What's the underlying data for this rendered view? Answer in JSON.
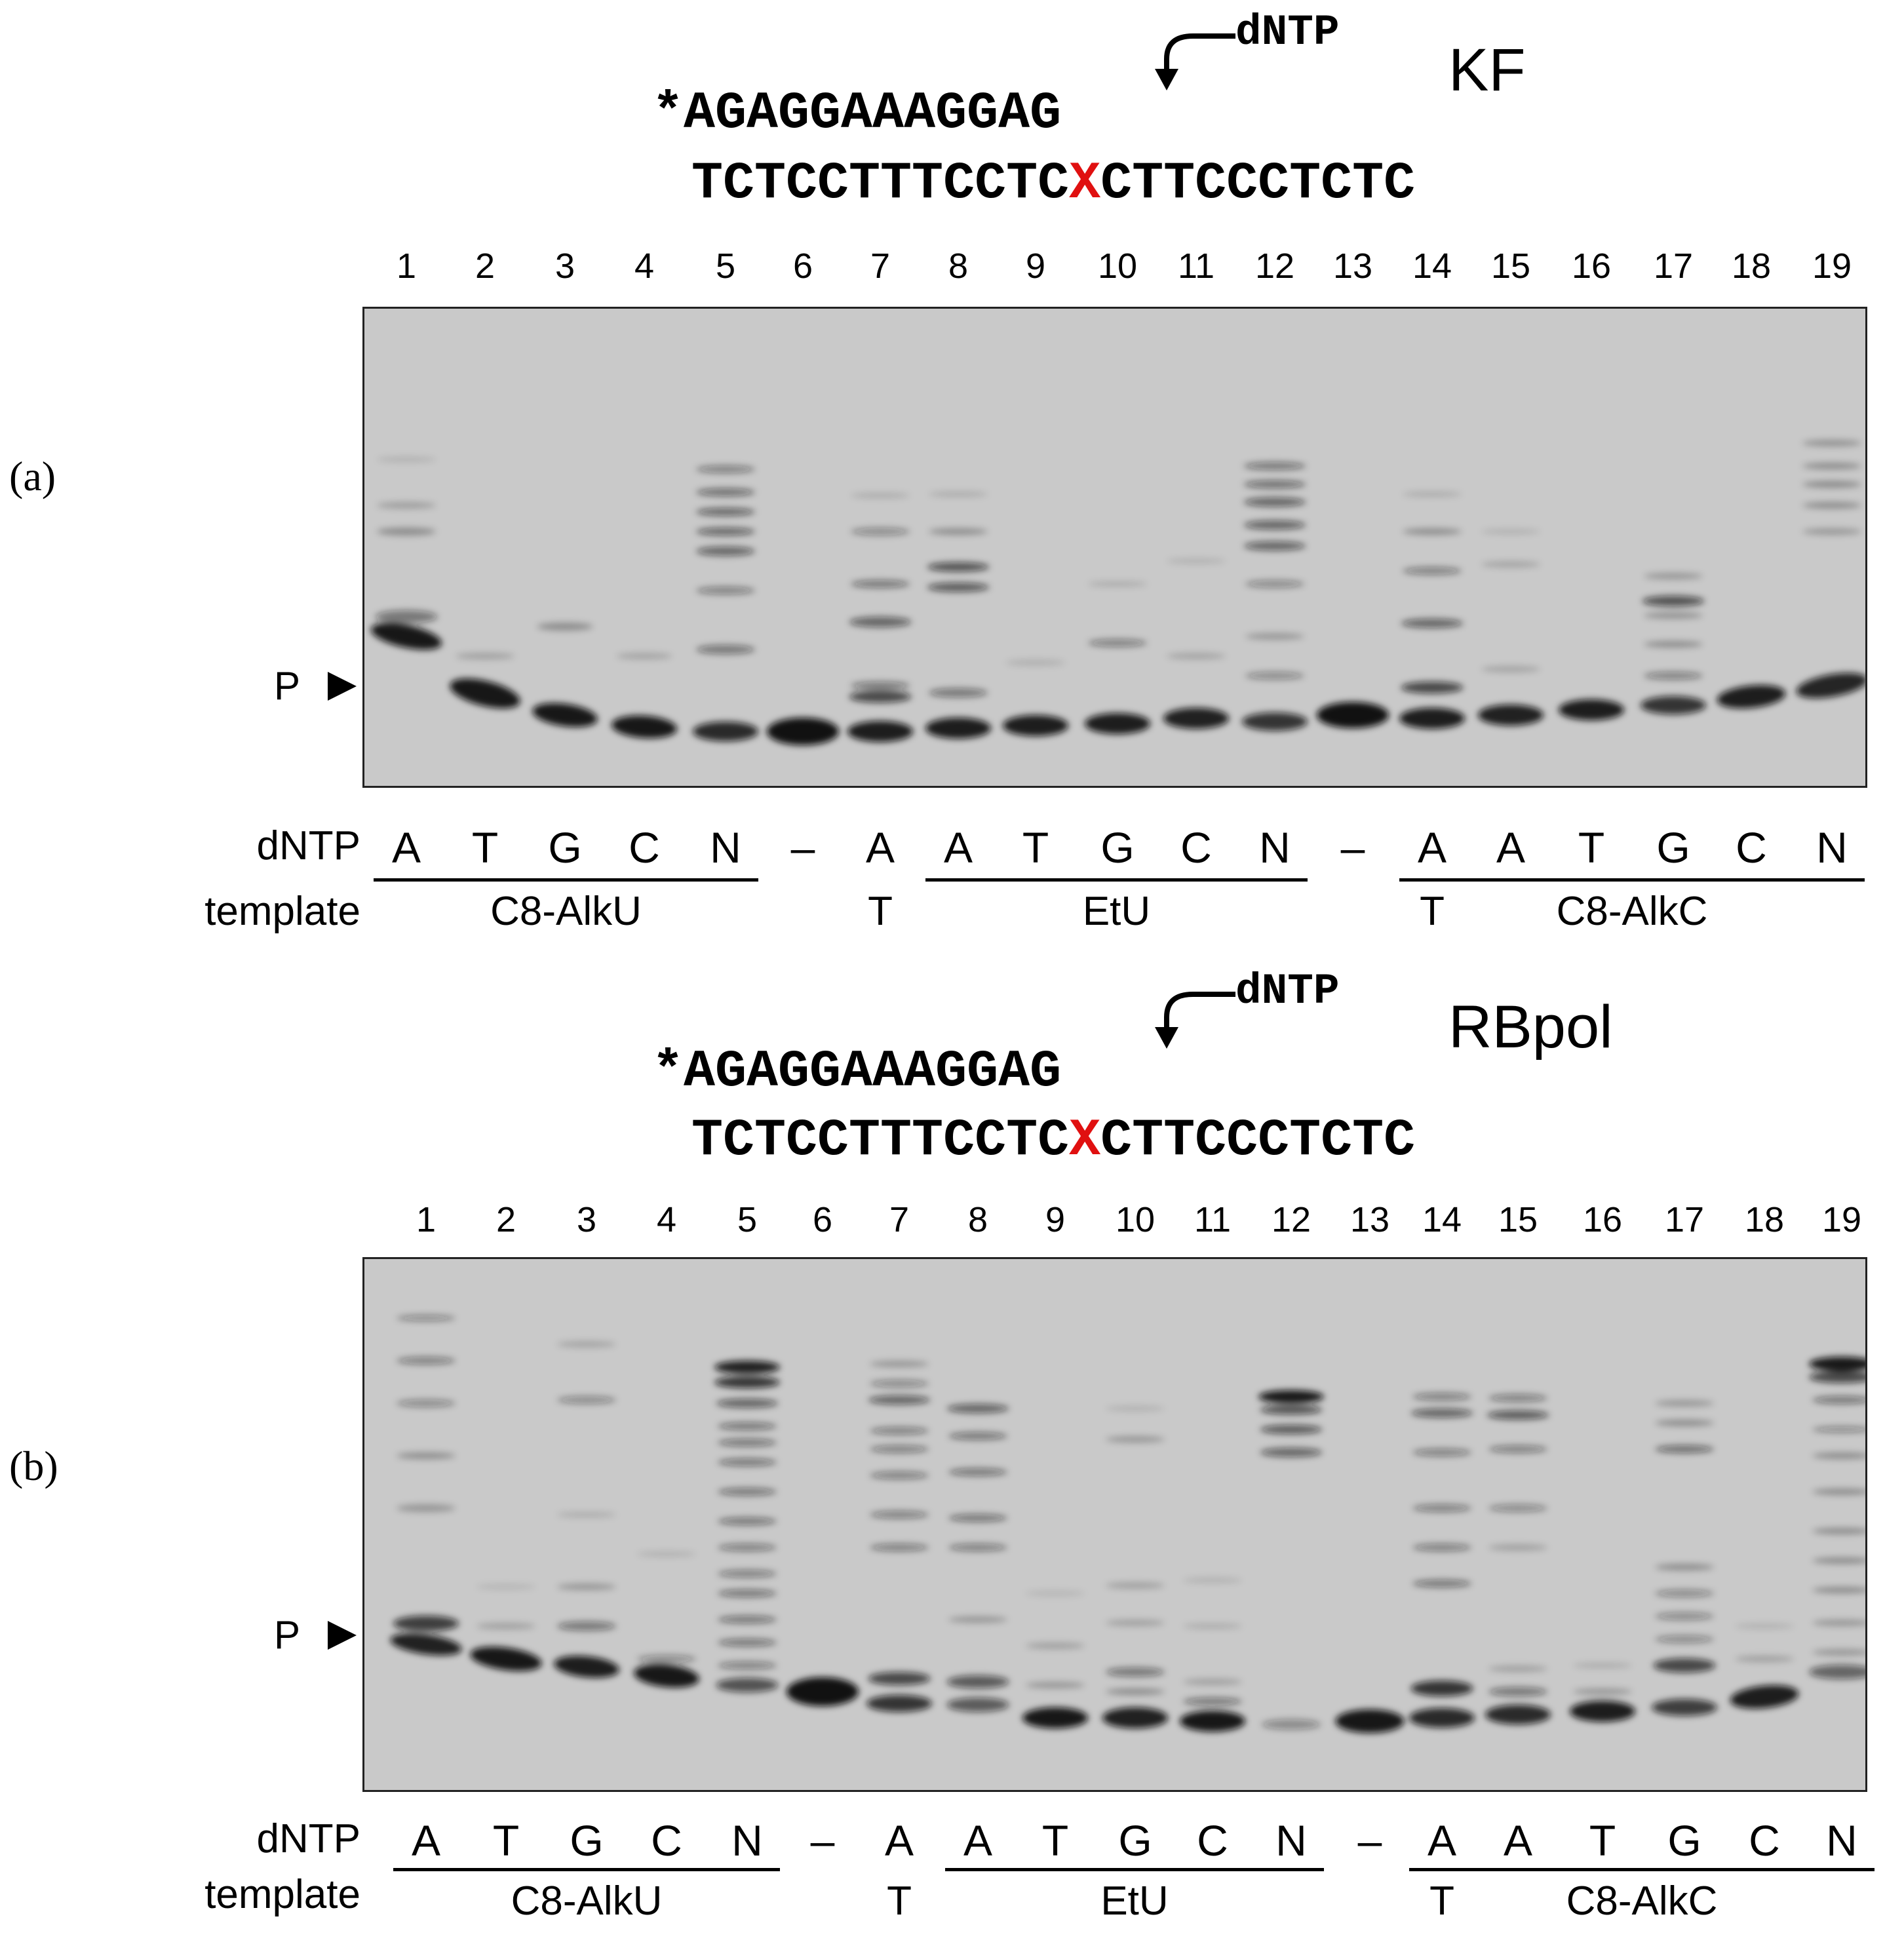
{
  "panels": [
    {
      "letter": "(a)",
      "dntp_arrow_label": "dNTP",
      "primer": "*AGAGGAAAGGAG",
      "template_left": "TCTCCTTTCCTC",
      "template_x": "X",
      "template_right": "CTTCCCTCTC",
      "enzyme": "KF",
      "lanes": [
        "1",
        "2",
        "3",
        "4",
        "5",
        "6",
        "7",
        "8",
        "9",
        "10",
        "11",
        "12",
        "13",
        "14",
        "15",
        "16",
        "17",
        "18",
        "19"
      ],
      "p_label": "P",
      "row_dntp": "dNTP",
      "row_template": "template",
      "dntp_values": [
        "A",
        "T",
        "G",
        "C",
        "N",
        "–",
        "A",
        "A",
        "T",
        "G",
        "C",
        "N",
        "–",
        "A",
        "A",
        "T",
        "G",
        "C",
        "N"
      ],
      "template_t1": "T",
      "template_t2": "T",
      "groups": [
        "C8-AlkU",
        "EtU",
        "C8-AlkC"
      ]
    },
    {
      "letter": "(b)",
      "dntp_arrow_label": "dNTP",
      "primer": "*AGAGGAAAGGAG",
      "template_left": "TCTCCTTTCCTC",
      "template_x": "X",
      "template_right": "CTTCCCTCTC",
      "enzyme": "RBpol",
      "lanes": [
        "1",
        "2",
        "3",
        "4",
        "5",
        "6",
        "7",
        "8",
        "9",
        "10",
        "11",
        "12",
        "13",
        "14",
        "15",
        "16",
        "17",
        "18",
        "19"
      ],
      "p_label": "P",
      "row_dntp": "dNTP",
      "row_template": "template",
      "dntp_values": [
        "A",
        "T",
        "G",
        "C",
        "N",
        "–",
        "A",
        "A",
        "T",
        "G",
        "C",
        "N",
        "–",
        "A",
        "A",
        "T",
        "G",
        "C",
        "N"
      ],
      "template_t1": "T",
      "template_t2": "T",
      "groups": [
        "C8-AlkU",
        "EtU",
        "C8-AlkC"
      ]
    }
  ],
  "colors": {
    "x_mark": "#e01010",
    "gel_bg": "#c9c9c9",
    "band": "#111111"
  }
}
